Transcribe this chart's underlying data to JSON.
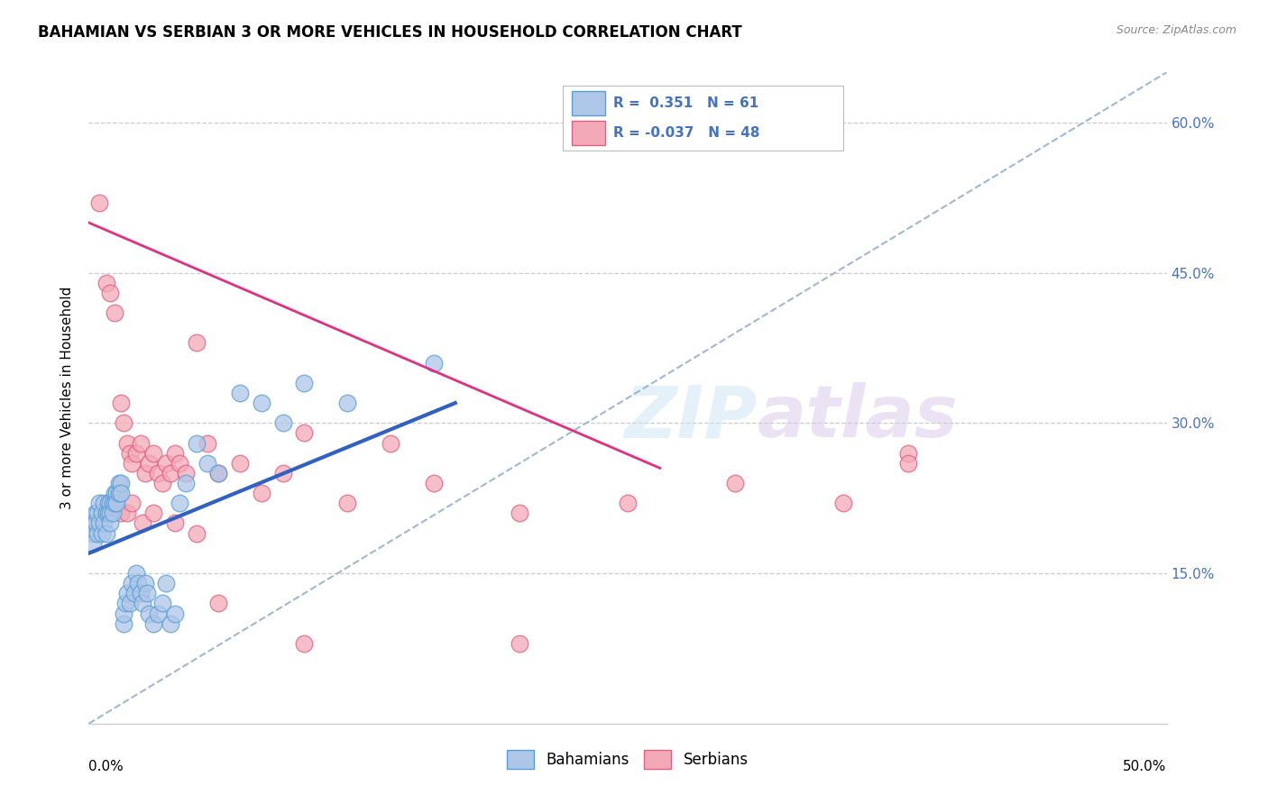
{
  "title": "BAHAMIAN VS SERBIAN 3 OR MORE VEHICLES IN HOUSEHOLD CORRELATION CHART",
  "source": "Source: ZipAtlas.com",
  "ylabel": "3 or more Vehicles in Household",
  "y_tick_labels_right": [
    "15.0%",
    "30.0%",
    "45.0%",
    "60.0%"
  ],
  "xlim": [
    0.0,
    0.5
  ],
  "ylim": [
    0.0,
    0.65
  ],
  "bahamian_color": "#aec6e8",
  "serbian_color": "#f4a9b8",
  "bahamian_edge": "#5a9fd4",
  "serbian_edge": "#e06080",
  "regression_blue": "#3060c0",
  "regression_pink": "#e03080",
  "diagonal_color": "#a0b8d0",
  "legend_color": "#4472c4",
  "bahamian_R": 0.351,
  "bahamian_N": 61,
  "serbian_R": -0.037,
  "serbian_N": 48,
  "bahamian_x": [
    0.001,
    0.002,
    0.002,
    0.003,
    0.003,
    0.004,
    0.004,
    0.005,
    0.005,
    0.006,
    0.006,
    0.007,
    0.007,
    0.008,
    0.008,
    0.009,
    0.009,
    0.01,
    0.01,
    0.01,
    0.011,
    0.011,
    0.012,
    0.012,
    0.013,
    0.013,
    0.014,
    0.014,
    0.015,
    0.015,
    0.016,
    0.016,
    0.017,
    0.018,
    0.019,
    0.02,
    0.021,
    0.022,
    0.023,
    0.024,
    0.025,
    0.026,
    0.027,
    0.028,
    0.03,
    0.032,
    0.034,
    0.036,
    0.038,
    0.04,
    0.042,
    0.045,
    0.05,
    0.055,
    0.06,
    0.07,
    0.08,
    0.09,
    0.1,
    0.12,
    0.16
  ],
  "bahamian_y": [
    0.2,
    0.19,
    0.18,
    0.21,
    0.2,
    0.19,
    0.21,
    0.22,
    0.2,
    0.21,
    0.19,
    0.22,
    0.2,
    0.21,
    0.19,
    0.22,
    0.21,
    0.22,
    0.21,
    0.2,
    0.22,
    0.21,
    0.23,
    0.22,
    0.23,
    0.22,
    0.24,
    0.23,
    0.24,
    0.23,
    0.1,
    0.11,
    0.12,
    0.13,
    0.12,
    0.14,
    0.13,
    0.15,
    0.14,
    0.13,
    0.12,
    0.14,
    0.13,
    0.11,
    0.1,
    0.11,
    0.12,
    0.14,
    0.1,
    0.11,
    0.22,
    0.24,
    0.28,
    0.26,
    0.25,
    0.33,
    0.32,
    0.3,
    0.34,
    0.32,
    0.36
  ],
  "serbian_x": [
    0.005,
    0.008,
    0.01,
    0.012,
    0.015,
    0.016,
    0.018,
    0.019,
    0.02,
    0.022,
    0.024,
    0.026,
    0.028,
    0.03,
    0.032,
    0.034,
    0.036,
    0.038,
    0.04,
    0.042,
    0.045,
    0.05,
    0.055,
    0.06,
    0.07,
    0.08,
    0.09,
    0.1,
    0.12,
    0.14,
    0.16,
    0.2,
    0.25,
    0.3,
    0.35,
    0.38,
    0.01,
    0.015,
    0.018,
    0.02,
    0.025,
    0.03,
    0.04,
    0.05,
    0.06,
    0.1,
    0.2,
    0.38
  ],
  "serbian_y": [
    0.52,
    0.44,
    0.43,
    0.41,
    0.32,
    0.3,
    0.28,
    0.27,
    0.26,
    0.27,
    0.28,
    0.25,
    0.26,
    0.27,
    0.25,
    0.24,
    0.26,
    0.25,
    0.27,
    0.26,
    0.25,
    0.38,
    0.28,
    0.25,
    0.26,
    0.23,
    0.25,
    0.29,
    0.22,
    0.28,
    0.24,
    0.21,
    0.22,
    0.24,
    0.22,
    0.27,
    0.22,
    0.21,
    0.21,
    0.22,
    0.2,
    0.21,
    0.2,
    0.19,
    0.12,
    0.08,
    0.08,
    0.26
  ]
}
